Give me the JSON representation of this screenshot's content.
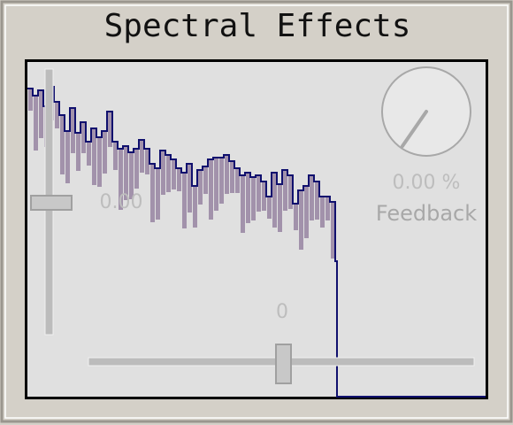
{
  "header": {
    "title": "Spectral Effects"
  },
  "controls": {
    "gain_slider": {
      "value_label": "0.00"
    },
    "offset_slider": {
      "value_label": "0"
    },
    "feedback_knob": {
      "value_label": "0.00 %",
      "label": "Feedback"
    }
  }
}
